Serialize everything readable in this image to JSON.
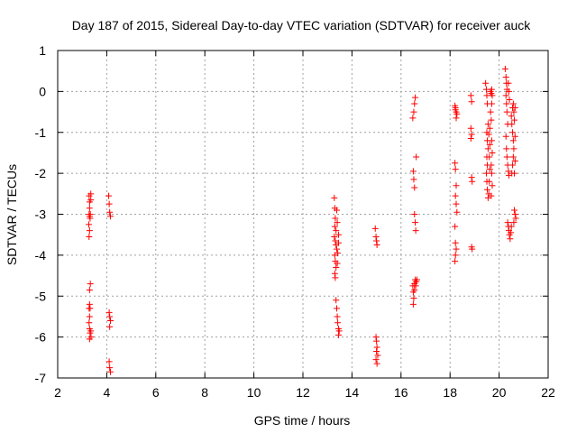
{
  "chart_data": {
    "type": "scatter",
    "title": "Day 187 of 2015, Sidereal Day-to-day VTEC variation (SDTVAR) for receiver auck",
    "xlabel": "GPS time / hours",
    "ylabel": "SDTVAR / TECUs",
    "xlim": [
      2,
      22
    ],
    "ylim": [
      -7,
      1
    ],
    "xticks": [
      2,
      4,
      6,
      8,
      10,
      12,
      14,
      16,
      18,
      20,
      22
    ],
    "yticks": [
      1,
      0,
      -1,
      -2,
      -3,
      -4,
      -5,
      -6,
      -7
    ],
    "xtick_labels": [
      "2",
      "4",
      "6",
      "8",
      "10",
      "12",
      "14",
      "16",
      "18",
      "20",
      "22"
    ],
    "ytick_labels": [
      "1",
      "0",
      "-1",
      "-2",
      "-3",
      "-4",
      "-5",
      "-6",
      "-7"
    ],
    "grid": true,
    "marker": "+",
    "color": "#ff0000",
    "series": [
      {
        "name": "auck",
        "points": [
          [
            3.28,
            -2.55
          ],
          [
            3.3,
            -2.7
          ],
          [
            3.3,
            -2.85
          ],
          [
            3.28,
            -3.0
          ],
          [
            3.3,
            -3.05
          ],
          [
            3.32,
            -3.1
          ],
          [
            3.27,
            -3.25
          ],
          [
            3.3,
            -3.4
          ],
          [
            3.28,
            -3.55
          ],
          [
            3.35,
            -2.5
          ],
          [
            3.35,
            -2.65
          ],
          [
            3.33,
            -3.0
          ],
          [
            3.33,
            -4.7
          ],
          [
            3.3,
            -4.85
          ],
          [
            3.3,
            -5.2
          ],
          [
            3.28,
            -5.3
          ],
          [
            3.32,
            -5.3
          ],
          [
            3.3,
            -5.5
          ],
          [
            3.28,
            -5.65
          ],
          [
            3.3,
            -5.8
          ],
          [
            3.32,
            -5.9
          ],
          [
            3.3,
            -6.05
          ],
          [
            3.35,
            -5.85
          ],
          [
            3.36,
            -6.0
          ],
          [
            4.08,
            -2.55
          ],
          [
            4.1,
            -2.75
          ],
          [
            4.12,
            -2.95
          ],
          [
            4.15,
            -3.05
          ],
          [
            4.1,
            -5.4
          ],
          [
            4.12,
            -5.5
          ],
          [
            4.15,
            -5.6
          ],
          [
            4.12,
            -5.75
          ],
          [
            4.1,
            -6.6
          ],
          [
            4.12,
            -6.75
          ],
          [
            4.15,
            -6.85
          ],
          [
            13.28,
            -2.6
          ],
          [
            13.3,
            -2.85
          ],
          [
            13.32,
            -3.1
          ],
          [
            13.3,
            -3.3
          ],
          [
            13.35,
            -3.4
          ],
          [
            13.28,
            -3.55
          ],
          [
            13.32,
            -3.65
          ],
          [
            13.35,
            -3.75
          ],
          [
            13.38,
            -3.85
          ],
          [
            13.3,
            -4.0
          ],
          [
            13.32,
            -4.15
          ],
          [
            13.35,
            -4.3
          ],
          [
            13.3,
            -4.45
          ],
          [
            13.32,
            -4.55
          ],
          [
            13.4,
            -4.2
          ],
          [
            13.42,
            -3.95
          ],
          [
            13.45,
            -3.7
          ],
          [
            13.45,
            -3.5
          ],
          [
            13.4,
            -3.2
          ],
          [
            13.38,
            -2.9
          ],
          [
            13.35,
            -5.1
          ],
          [
            13.38,
            -5.3
          ],
          [
            13.4,
            -5.5
          ],
          [
            13.42,
            -5.65
          ],
          [
            13.45,
            -5.8
          ],
          [
            13.45,
            -5.95
          ],
          [
            13.48,
            -5.85
          ],
          [
            14.95,
            -3.35
          ],
          [
            14.98,
            -3.55
          ],
          [
            15.0,
            -3.65
          ],
          [
            15.02,
            -3.75
          ],
          [
            14.98,
            -6.0
          ],
          [
            15.0,
            -6.1
          ],
          [
            15.02,
            -6.25
          ],
          [
            15.0,
            -6.35
          ],
          [
            15.05,
            -6.45
          ],
          [
            14.98,
            -6.55
          ],
          [
            15.02,
            -6.65
          ],
          [
            16.48,
            -0.65
          ],
          [
            16.52,
            -0.5
          ],
          [
            16.55,
            -0.3
          ],
          [
            16.58,
            -0.15
          ],
          [
            16.5,
            -1.95
          ],
          [
            16.52,
            -2.15
          ],
          [
            16.55,
            -2.35
          ],
          [
            16.55,
            -3.0
          ],
          [
            16.58,
            -3.2
          ],
          [
            16.6,
            -3.4
          ],
          [
            16.62,
            -1.6
          ],
          [
            16.48,
            -4.75
          ],
          [
            16.5,
            -4.9
          ],
          [
            16.52,
            -5.05
          ],
          [
            16.5,
            -5.2
          ],
          [
            16.55,
            -4.85
          ],
          [
            16.55,
            -4.7
          ],
          [
            16.58,
            -4.6
          ],
          [
            16.6,
            -4.75
          ],
          [
            16.62,
            -4.65
          ],
          [
            16.65,
            -4.6
          ],
          [
            18.2,
            -0.35
          ],
          [
            18.22,
            -0.4
          ],
          [
            18.25,
            -0.5
          ],
          [
            18.28,
            -0.55
          ],
          [
            18.25,
            -0.65
          ],
          [
            18.22,
            -0.45
          ],
          [
            18.2,
            -1.75
          ],
          [
            18.22,
            -1.9
          ],
          [
            18.25,
            -2.3
          ],
          [
            18.22,
            -2.55
          ],
          [
            18.25,
            -2.75
          ],
          [
            18.28,
            -2.95
          ],
          [
            18.2,
            -3.3
          ],
          [
            18.22,
            -3.7
          ],
          [
            18.25,
            -3.85
          ],
          [
            18.22,
            -4.0
          ],
          [
            18.2,
            -4.15
          ],
          [
            18.85,
            -0.1
          ],
          [
            18.88,
            -0.25
          ],
          [
            18.85,
            -0.9
          ],
          [
            18.88,
            -1.05
          ],
          [
            18.85,
            -1.15
          ],
          [
            18.88,
            -2.1
          ],
          [
            18.9,
            -2.2
          ],
          [
            18.88,
            -3.8
          ],
          [
            18.9,
            -3.85
          ],
          [
            19.45,
            0.2
          ],
          [
            19.48,
            0.05
          ],
          [
            19.5,
            -0.1
          ],
          [
            19.52,
            -0.3
          ],
          [
            19.55,
            -0.8
          ],
          [
            19.5,
            -1.0
          ],
          [
            19.52,
            -1.2
          ],
          [
            19.55,
            -1.4
          ],
          [
            19.5,
            -1.6
          ],
          [
            19.52,
            -1.8
          ],
          [
            19.48,
            -2.0
          ],
          [
            19.5,
            -2.2
          ],
          [
            19.52,
            -2.4
          ],
          [
            19.55,
            -2.6
          ],
          [
            19.58,
            -2.5
          ],
          [
            19.6,
            -2.2
          ],
          [
            19.62,
            -1.9
          ],
          [
            19.6,
            -1.6
          ],
          [
            19.62,
            -1.3
          ],
          [
            19.58,
            -1.05
          ],
          [
            19.62,
            -0.9
          ],
          [
            19.65,
            0.0
          ],
          [
            19.68,
            -0.05
          ],
          [
            19.7,
            0.05
          ],
          [
            19.72,
            -0.1
          ],
          [
            19.7,
            -0.3
          ],
          [
            19.65,
            -0.5
          ],
          [
            19.68,
            -0.7
          ],
          [
            19.7,
            -1.2
          ],
          [
            19.72,
            -1.5
          ],
          [
            19.68,
            -1.8
          ],
          [
            19.7,
            -2.0
          ],
          [
            19.72,
            -2.3
          ],
          [
            19.68,
            -2.55
          ],
          [
            20.25,
            0.55
          ],
          [
            20.28,
            0.35
          ],
          [
            20.3,
            0.2
          ],
          [
            20.32,
            0.05
          ],
          [
            20.28,
            -0.1
          ],
          [
            20.3,
            -0.3
          ],
          [
            20.32,
            -0.5
          ],
          [
            20.35,
            -0.8
          ],
          [
            20.28,
            -1.1
          ],
          [
            20.3,
            -1.4
          ],
          [
            20.32,
            -1.6
          ],
          [
            20.35,
            -1.8
          ],
          [
            20.38,
            -1.95
          ],
          [
            20.4,
            -2.05
          ],
          [
            20.42,
            -0.2
          ],
          [
            20.4,
            0.0
          ],
          [
            20.38,
            0.2
          ],
          [
            20.35,
            -3.2
          ],
          [
            20.38,
            -3.3
          ],
          [
            20.4,
            -3.4
          ],
          [
            20.42,
            -3.5
          ],
          [
            20.45,
            -3.6
          ],
          [
            20.48,
            -3.45
          ],
          [
            20.5,
            -3.3
          ],
          [
            20.5,
            -0.6
          ],
          [
            20.52,
            -0.8
          ],
          [
            20.55,
            -1.0
          ],
          [
            20.58,
            -1.2
          ],
          [
            20.6,
            -1.4
          ],
          [
            20.58,
            -1.6
          ],
          [
            20.55,
            -1.8
          ],
          [
            20.52,
            -2.0
          ],
          [
            20.55,
            -0.4
          ],
          [
            20.58,
            -0.3
          ],
          [
            20.6,
            -0.5
          ],
          [
            20.62,
            -0.7
          ],
          [
            20.65,
            -1.1
          ],
          [
            20.65,
            -1.7
          ],
          [
            20.62,
            -2.0
          ],
          [
            20.62,
            -2.9
          ],
          [
            20.65,
            -3.0
          ],
          [
            20.68,
            -3.1
          ],
          [
            20.6,
            -3.2
          ],
          [
            20.65,
            -0.4
          ]
        ]
      }
    ]
  }
}
